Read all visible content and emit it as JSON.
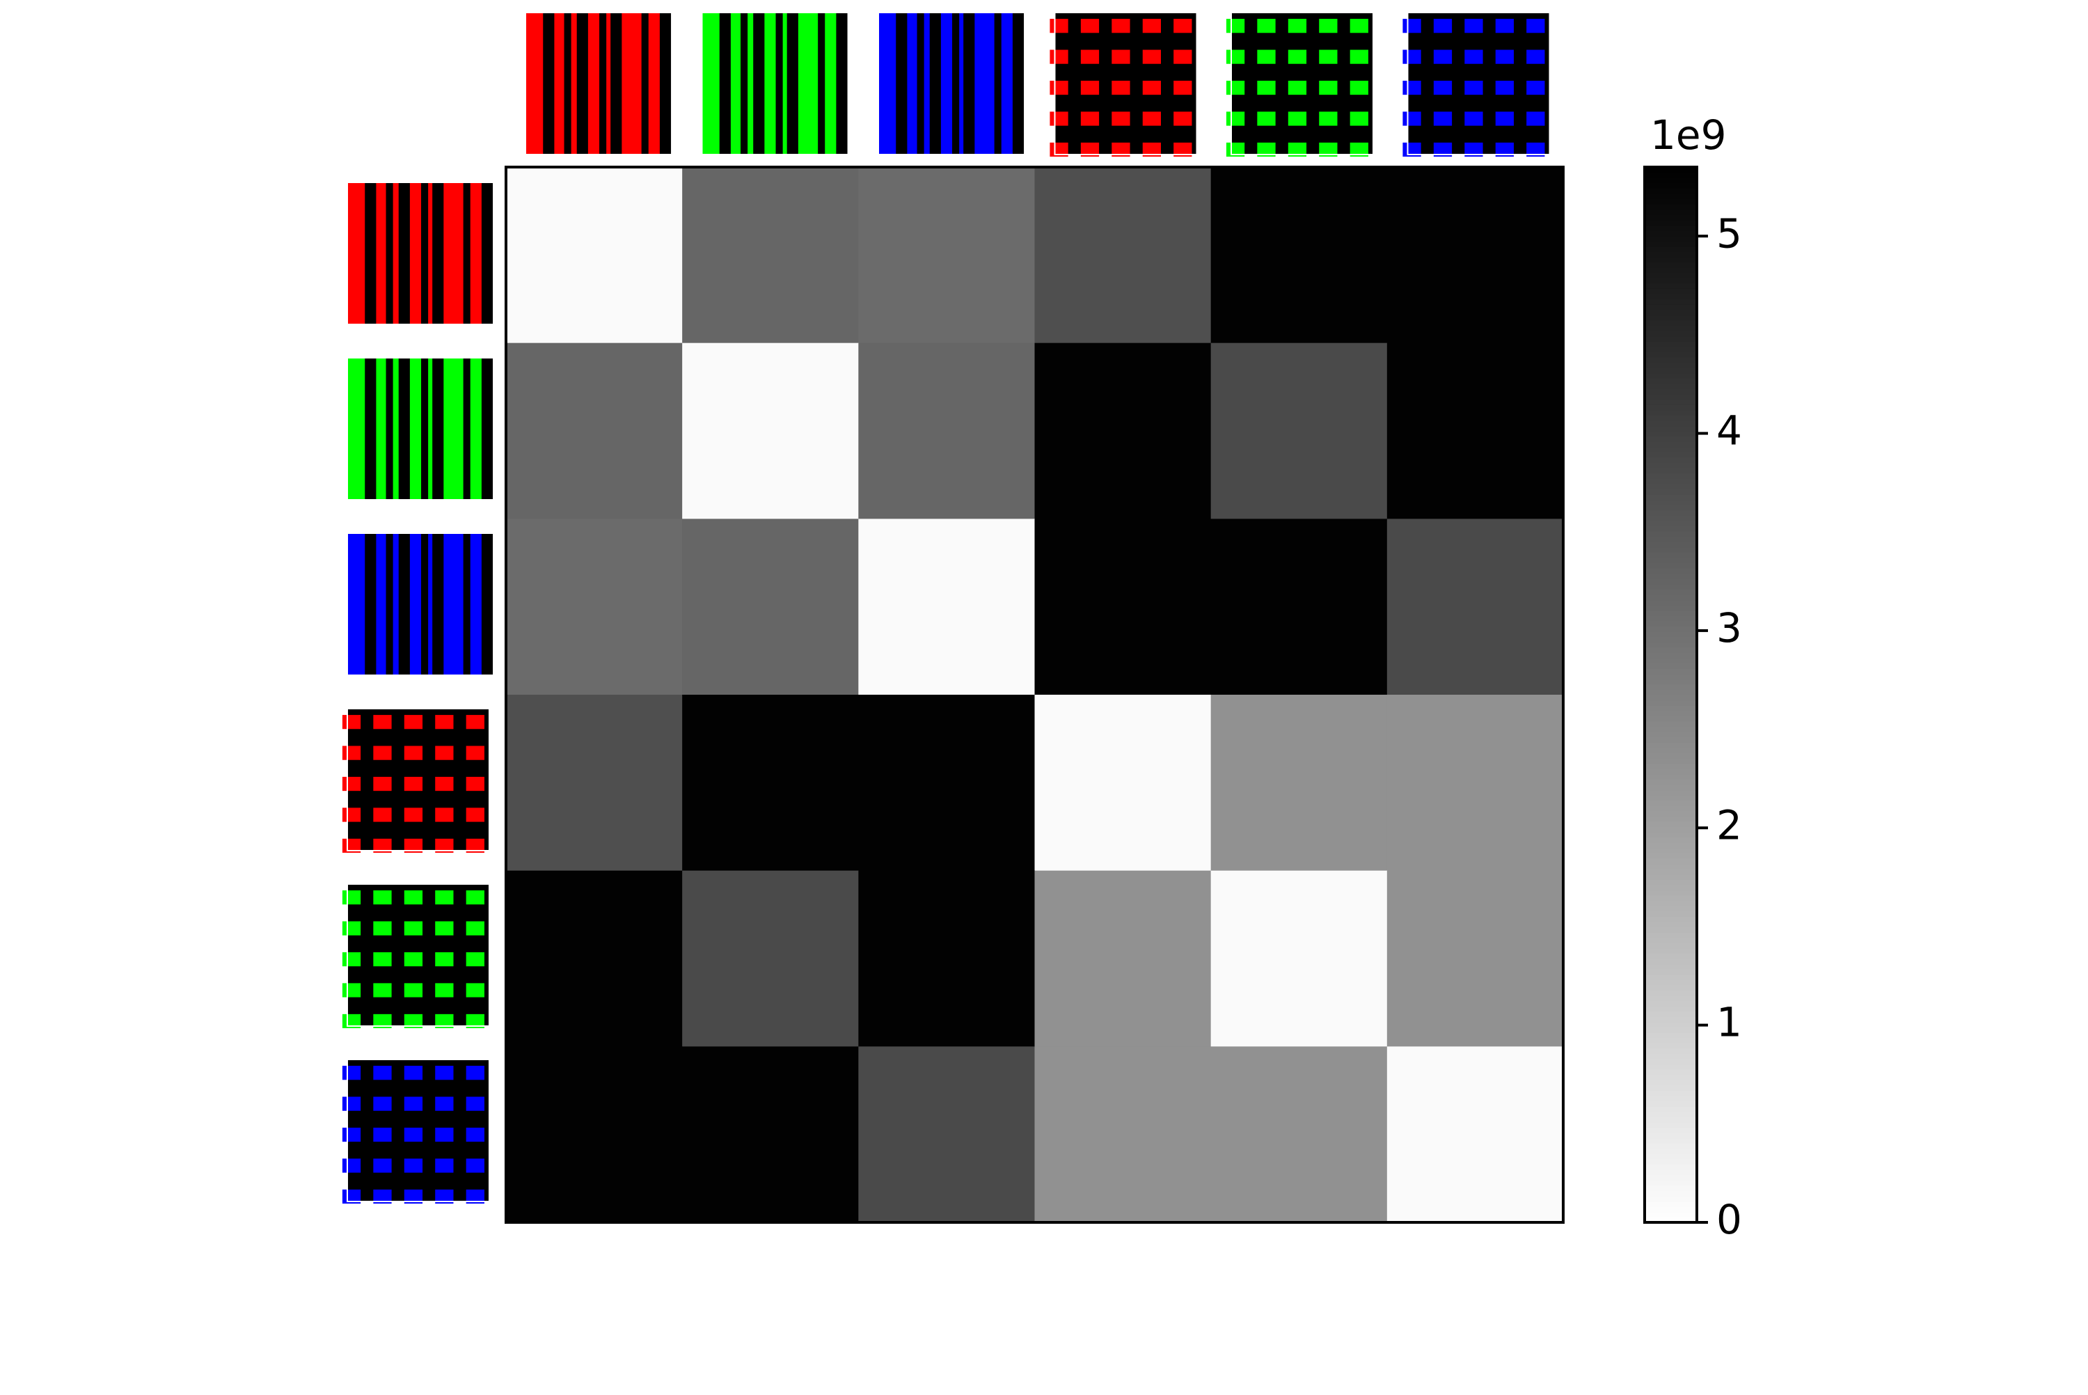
{
  "chart_data": {
    "type": "heatmap",
    "matrix": [
      [
        0.1,
        3.2,
        3.1,
        3.7,
        5.3,
        5.3
      ],
      [
        3.2,
        0.1,
        3.2,
        5.3,
        3.8,
        5.3
      ],
      [
        3.1,
        3.2,
        0.1,
        5.3,
        5.3,
        3.8
      ],
      [
        3.7,
        5.3,
        5.3,
        0.1,
        2.3,
        2.3
      ],
      [
        5.3,
        3.8,
        5.3,
        2.3,
        0.1,
        2.3
      ],
      [
        5.3,
        5.3,
        3.8,
        2.3,
        2.3,
        0.1
      ]
    ],
    "colormap": "gray_r",
    "zlim": [
      0,
      5.35
    ],
    "zticks": [
      0,
      1,
      2,
      3,
      4,
      5
    ],
    "offset_label": "1e9"
  }
}
